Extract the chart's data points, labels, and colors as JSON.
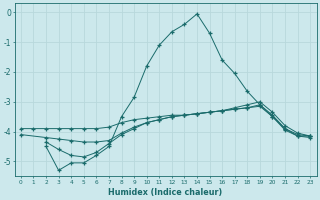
{
  "xlabel": "Humidex (Indice chaleur)",
  "xlim": [
    -0.5,
    23.5
  ],
  "ylim": [
    -5.5,
    0.3
  ],
  "background_color": "#cce8ec",
  "grid_color": "#b8d8dc",
  "line_color": "#1a6b6b",
  "x_ticks": [
    0,
    1,
    2,
    3,
    4,
    5,
    6,
    7,
    8,
    9,
    10,
    11,
    12,
    13,
    14,
    15,
    16,
    17,
    18,
    19,
    20,
    21,
    22,
    23
  ],
  "y_ticks": [
    0,
    -1,
    -2,
    -3,
    -4,
    -5
  ],
  "line1_x": [
    0,
    1,
    2,
    3,
    4,
    5,
    6,
    7,
    8,
    9,
    10,
    11,
    12,
    13,
    14,
    15,
    16,
    17,
    18,
    19,
    20,
    21,
    22,
    23
  ],
  "line1_y": [
    -3.9,
    -3.9,
    -3.9,
    -3.9,
    -3.9,
    -3.9,
    -3.9,
    -3.85,
    -3.7,
    -3.6,
    -3.55,
    -3.5,
    -3.45,
    -3.45,
    -3.4,
    -3.35,
    -3.3,
    -3.25,
    -3.2,
    -3.15,
    -3.5,
    -3.9,
    -4.15,
    -4.15
  ],
  "line2_x": [
    0,
    2,
    3,
    4,
    5,
    6,
    7,
    8,
    9,
    10,
    11,
    12,
    13,
    14,
    15,
    16,
    17,
    18,
    19,
    20,
    21,
    22,
    23
  ],
  "line2_y": [
    -4.1,
    -4.2,
    -4.25,
    -4.3,
    -4.35,
    -4.35,
    -4.3,
    -4.05,
    -3.85,
    -3.7,
    -3.6,
    -3.5,
    -3.45,
    -3.4,
    -3.35,
    -3.3,
    -3.25,
    -3.2,
    -3.1,
    -3.45,
    -3.9,
    -4.1,
    -4.15
  ],
  "line3_x": [
    2,
    3,
    4,
    5,
    6,
    7,
    8,
    9,
    10,
    11,
    12,
    13,
    14,
    15,
    16,
    17,
    18,
    19,
    20,
    21,
    22,
    23
  ],
  "line3_y": [
    -4.35,
    -4.6,
    -4.8,
    -4.85,
    -4.7,
    -4.4,
    -4.1,
    -3.9,
    -3.7,
    -3.6,
    -3.5,
    -3.45,
    -3.4,
    -3.35,
    -3.3,
    -3.2,
    -3.1,
    -3.0,
    -3.35,
    -3.8,
    -4.05,
    -4.15
  ],
  "line4_x": [
    2,
    3,
    4,
    5,
    6,
    7,
    8,
    9,
    10,
    11,
    12,
    13,
    14,
    15,
    16,
    17,
    18,
    19,
    20,
    21,
    22,
    23
  ],
  "line4_y": [
    -4.5,
    -5.3,
    -5.05,
    -5.05,
    -4.8,
    -4.5,
    -3.5,
    -2.85,
    -1.8,
    -1.1,
    -0.65,
    -0.4,
    -0.05,
    -0.7,
    -1.6,
    -2.05,
    -2.65,
    -3.1,
    -3.5,
    -3.95,
    -4.15,
    -4.2
  ]
}
